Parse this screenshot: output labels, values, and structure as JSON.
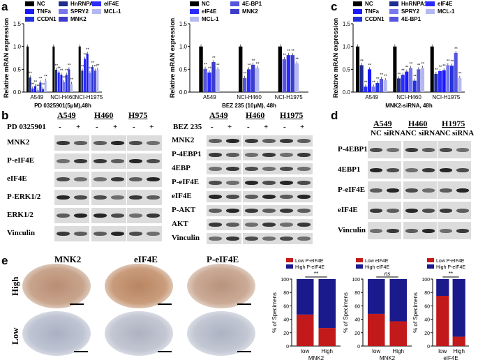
{
  "panel_letters": [
    "a",
    "b",
    "c",
    "d",
    "e"
  ],
  "colors": {
    "NC": "#000000",
    "HnRNPA1": "#1f2c8f",
    "TNFa": "#1a1aff",
    "CCDN1": "#2233dd",
    "SPRY2": "#7777ee",
    "MNK2": "#3d3dcc",
    "eIF4E": "#2b2bff",
    "MCL1": "#b3b8f0",
    "4EBP1": "#5555dd",
    "low_p": "#c21a1a",
    "high_p": "#1a1a8c"
  },
  "chart_data": [
    {
      "type": "bar",
      "id": "a1",
      "categories": [
        "A549",
        "NCI-H460",
        "NCI-H1975"
      ],
      "series": [
        {
          "name": "NC",
          "values": [
            1.0,
            1.0,
            1.0
          ]
        },
        {
          "name": "HnRNPA1",
          "values": [
            0.32,
            0.49,
            0.47
          ]
        },
        {
          "name": "eIF4E",
          "values": [
            0.08,
            0.43,
            0.73
          ]
        },
        {
          "name": "TNFa",
          "values": [
            0.13,
            0.38,
            0.84
          ]
        },
        {
          "name": "SPRY2",
          "values": [
            0.04,
            0.22,
            0.42
          ]
        },
        {
          "name": "CCDN1",
          "values": [
            0.21,
            0.38,
            0.55
          ]
        },
        {
          "name": "MNK2",
          "values": [
            0.07,
            0.5,
            0.47
          ]
        },
        {
          "name": "MCL-1",
          "values": [
            0.25,
            0.18,
            0.49
          ]
        }
      ],
      "legend": [
        "NC",
        "HnRNPA1",
        "eIF4E",
        "TNFa",
        "SPRY2",
        "MCL-1",
        "CCDN1",
        "MNK2"
      ],
      "ylabel": "Relative mRAN expression",
      "xlabel": "PD 0325901(5μM),48h",
      "ylim": [
        0,
        1.5
      ],
      "yticks": [
        "0.0",
        "0.5",
        "1.0",
        "1.5"
      ]
    },
    {
      "type": "bar",
      "id": "a2",
      "categories": [
        "A549",
        "NCI-H460",
        "NCI-H1975"
      ],
      "series": [
        {
          "name": "NC",
          "values": [
            1.0,
            1.0,
            1.0
          ]
        },
        {
          "name": "4E-BP1",
          "values": [
            0.51,
            0.31,
            0.72
          ]
        },
        {
          "name": "eIF4E",
          "values": [
            0.43,
            0.5,
            0.81
          ]
        },
        {
          "name": "MNK2",
          "values": [
            0.66,
            0.6,
            0.81
          ]
        },
        {
          "name": "MCL-1",
          "values": [
            0.5,
            0.53,
            0.63
          ]
        }
      ],
      "legend": [
        "NC",
        "4E-BP1",
        "eIF4E",
        "MNK2",
        "MCL-1"
      ],
      "ylabel": "Relative mRAN expression",
      "xlabel": "BEZ 235 (10μM), 48h",
      "ylim": [
        0,
        1.5
      ],
      "yticks": [
        "0.0",
        "0.5",
        "1.0",
        "1.5"
      ]
    },
    {
      "type": "bar",
      "id": "c",
      "categories": [
        "A549",
        "NCI-H460",
        "NCI-H1975"
      ],
      "series": [
        {
          "name": "NC",
          "values": [
            1.0,
            1.0,
            1.0
          ]
        },
        {
          "name": "HnRNPA1",
          "values": [
            0.59,
            0.3,
            0.4
          ]
        },
        {
          "name": "eIF4E",
          "values": [
            0.12,
            0.38,
            0.46
          ]
        },
        {
          "name": "TNFa",
          "values": [
            0.5,
            0.45,
            0.48
          ]
        },
        {
          "name": "SPRY2",
          "values": [
            0.12,
            0.53,
            0.59
          ]
        },
        {
          "name": "CCDN1",
          "values": [
            0.2,
            0.25,
            0.58
          ]
        },
        {
          "name": "4E-BP1",
          "values": [
            0.29,
            0.5,
            0.86
          ]
        },
        {
          "name": "MCL-1",
          "values": [
            0.26,
            0.53,
            0.31
          ]
        }
      ],
      "legend": [
        "NC",
        "HnRNPA1",
        "eIF4E",
        "TNFa",
        "SPRY2",
        "MCL-1",
        "CCDN1",
        "4E-BP1"
      ],
      "ylabel": "Relative mRAN expression",
      "xlabel": "MNK2-siRNA, 48h",
      "ylim": [
        0,
        1.5
      ],
      "yticks": [
        "0.0",
        "0.5",
        "1.0",
        "1.5"
      ]
    },
    {
      "type": "bar",
      "id": "e1",
      "stacked": true,
      "categories": [
        "low",
        "High"
      ],
      "series": [
        {
          "name": "Low P-eIF4E",
          "values": [
            47,
            27
          ]
        },
        {
          "name": "High P-eIF4E",
          "values": [
            53,
            73
          ]
        }
      ],
      "legend": [
        "Low P-eIF4E",
        "High P-eIF4E"
      ],
      "ylabel": "% of Specimens",
      "xlabel": "MNK2",
      "significance": "**",
      "ylim": [
        0,
        100
      ],
      "yticks": [
        "0",
        "20",
        "40",
        "60",
        "80",
        "100"
      ]
    },
    {
      "type": "bar",
      "id": "e2",
      "stacked": true,
      "categories": [
        "low",
        "High"
      ],
      "series": [
        {
          "name": "Low eIF4E",
          "values": [
            48,
            37
          ]
        },
        {
          "name": "High eIF4E",
          "values": [
            52,
            63
          ]
        }
      ],
      "legend": [
        "Low eIF4E",
        "High eIF4E"
      ],
      "ylabel": "% of Specimens",
      "xlabel": "MNK2",
      "significance": "ns",
      "ylim": [
        0,
        100
      ],
      "yticks": [
        "0",
        "20",
        "40",
        "60",
        "80",
        "100"
      ]
    },
    {
      "type": "bar",
      "id": "e3",
      "stacked": true,
      "categories": [
        "low",
        "High"
      ],
      "series": [
        {
          "name": "Low P-eIF4E",
          "values": [
            75,
            14
          ]
        },
        {
          "name": "High P-eIF4E",
          "values": [
            25,
            86
          ]
        }
      ],
      "legend": [
        "Low P-eIF4E",
        "High P-eIF4E"
      ],
      "ylabel": "% of Specimens",
      "xlabel": "eIF4E",
      "significance": "**",
      "ylim": [
        0,
        100
      ],
      "yticks": [
        "0",
        "20",
        "40",
        "60",
        "80",
        "100"
      ]
    }
  ],
  "blots": {
    "b_left": {
      "cell_lines": [
        "A549",
        "H460",
        "H975"
      ],
      "treatment": "PD 0325901",
      "signs": [
        "-",
        "+",
        "-",
        "+",
        "-",
        "+"
      ],
      "rows": [
        "MNK2",
        "P-eIF4E",
        "eIF4E",
        "P-ERK1/2",
        "ERK1/2",
        "Vinculin"
      ]
    },
    "b_right": {
      "cell_lines": [
        "A549",
        "H460",
        "H1975"
      ],
      "treatment": "BEZ 235",
      "signs": [
        "-",
        "+",
        "-",
        "+",
        "-",
        "+"
      ],
      "rows": [
        "MNK2",
        "P-4EBP1",
        "4EBP",
        "P-eIF4E",
        "eIF4E",
        "P-AKT",
        "AKT",
        "Vinculin"
      ]
    },
    "d": {
      "cell_lines": [
        "A549",
        "H460",
        "H1975"
      ],
      "conditions": [
        "NC",
        "siRNA",
        "NC",
        "siRNA",
        "NC",
        "siRNA"
      ],
      "rows": [
        "P-4EBP1",
        "4EBP1",
        "P-eIF4E",
        "eIF4E",
        "Vinculin"
      ]
    }
  },
  "ihc": {
    "columns": [
      "MNK2",
      "eIF4E",
      "P-eIF4E"
    ],
    "rows": [
      "High",
      "Low"
    ]
  }
}
